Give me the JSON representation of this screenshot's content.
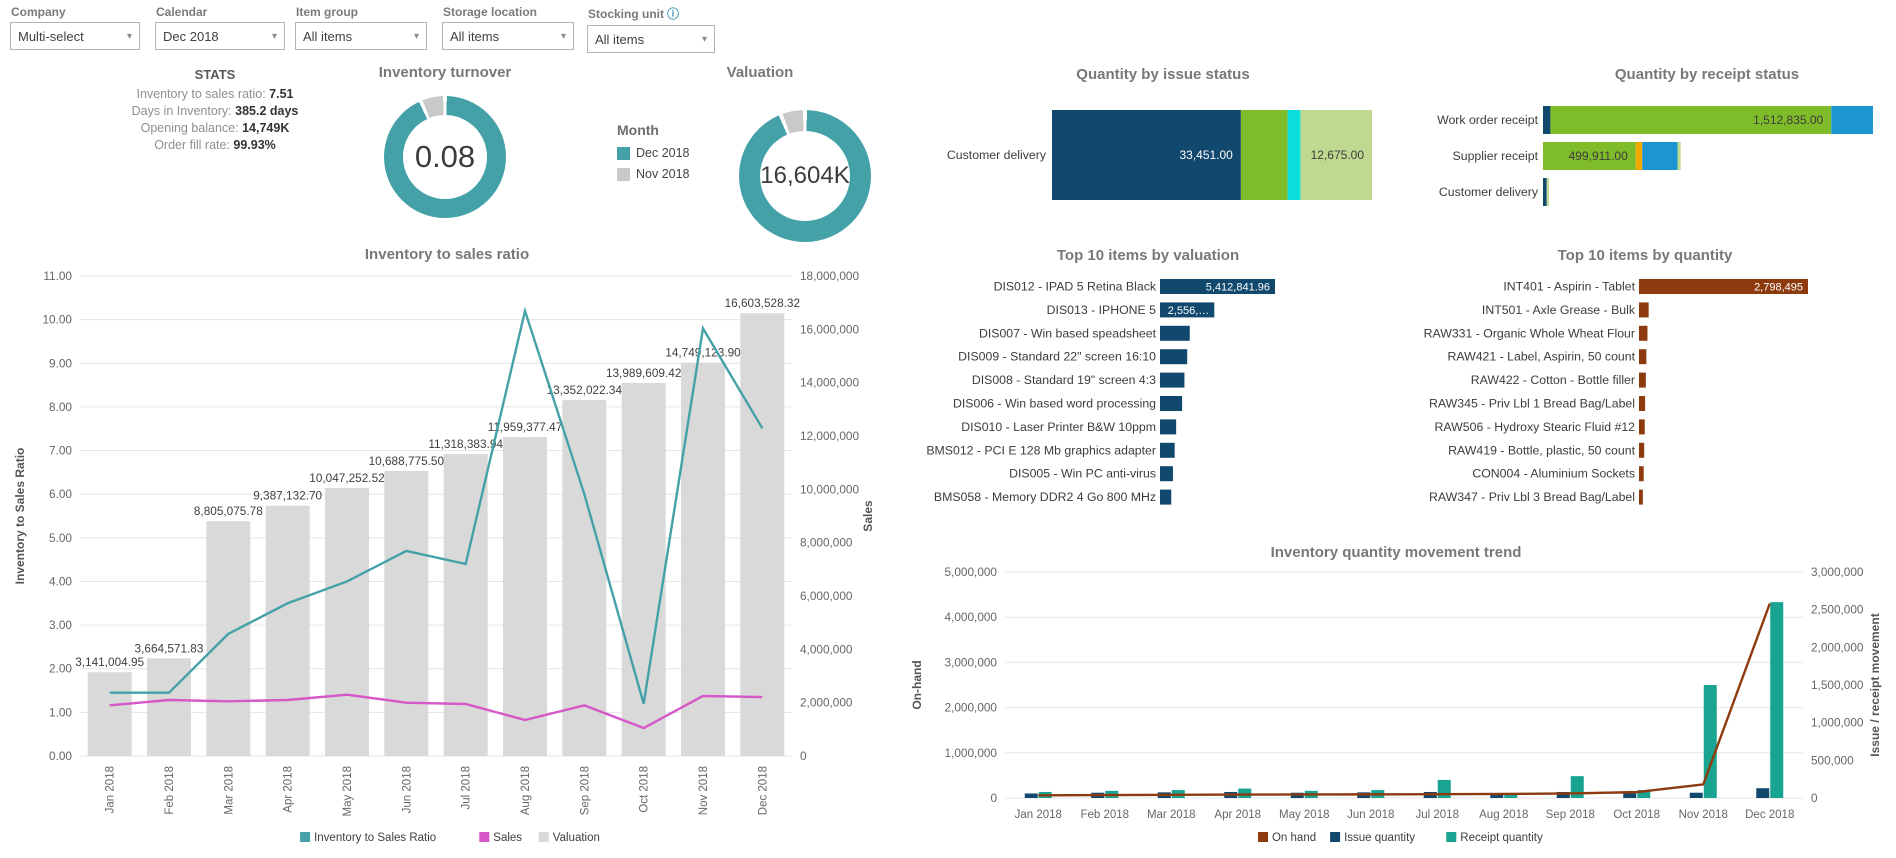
{
  "colors": {
    "teal": "#45a1a8",
    "donut_gray": "#c9c9c9",
    "bar_gray": "#d9d9d9",
    "navy": "#11486e",
    "green": "#7fbc2a",
    "light_green": "#bfda90",
    "cyan": "#0adedd",
    "blue": "#1b96d3",
    "orange": "#f2a900",
    "brown": "#8d3b0e",
    "emerald": "#18a491",
    "magenta": "#d557c8",
    "title_gray": "#787878",
    "grid": "#e5e5e5",
    "axis_text": "#666666"
  },
  "filters": [
    {
      "label": "Company",
      "value": "Multi-select",
      "info": false
    },
    {
      "label": "Calendar",
      "value": "Dec 2018",
      "info": false
    },
    {
      "label": "Item group",
      "value": "All items",
      "info": false
    },
    {
      "label": "Storage location",
      "value": "All items",
      "info": false
    },
    {
      "label": "Stocking unit",
      "value": "All items",
      "info": true
    }
  ],
  "stats": {
    "title": "STATS",
    "lines": [
      {
        "label": "Inventory to sales ratio:",
        "value": "7.51"
      },
      {
        "label": "Days in Inventory:",
        "value": "385.2 days"
      },
      {
        "label": "Opening balance:",
        "value": "14,749K"
      },
      {
        "label": "Order fill rate:",
        "value": "99.93%"
      }
    ]
  },
  "month_legend": {
    "title": "Month",
    "items": [
      {
        "label": "Dec 2018",
        "color": "#45a1a8"
      },
      {
        "label": "Nov 2018",
        "color": "#c9c9c9"
      }
    ]
  },
  "chart_data": [
    {
      "id": "inventory-turnover",
      "type": "donut",
      "title": "Inventory turnover",
      "center_label": "0.08",
      "slices": [
        {
          "label": "Dec 2018",
          "share": 93.5,
          "color": "#45a1a8"
        },
        {
          "label": "Nov 2018",
          "share": 6.5,
          "color": "#c9c9c9"
        }
      ]
    },
    {
      "id": "valuation",
      "type": "donut",
      "title": "Valuation",
      "center_label": "16,604K",
      "slices": [
        {
          "label": "Dec 2018",
          "share": 94,
          "color": "#45a1a8"
        },
        {
          "label": "Nov 2018",
          "share": 6,
          "color": "#c9c9c9"
        }
      ]
    },
    {
      "id": "issue-status",
      "type": "stacked_bar",
      "title": "Quantity by issue status",
      "rows": [
        {
          "category": "Customer delivery",
          "segments": [
            {
              "value": 33451,
              "label": "33,451.00",
              "color": "#11486e",
              "label_color": "#ffffff"
            },
            {
              "value": 8280,
              "color": "#7fbc2a"
            },
            {
              "value": 2270,
              "color": "#0adedd"
            },
            {
              "value": 12675,
              "label": "12,675.00",
              "color": "#bfda90",
              "label_color": "#3c3c3c"
            }
          ]
        }
      ]
    },
    {
      "id": "receipt-status",
      "type": "stacked_bar",
      "title": "Quantity by receipt status",
      "rows": [
        {
          "category": "Work order receipt",
          "segments": [
            {
              "value": 40000,
              "color": "#11486e"
            },
            {
              "value": 1512835,
              "label": "1,512,835.00",
              "color": "#7fbc2a",
              "label_color": "#3c3c3c"
            },
            {
              "value": 225000,
              "color": "#1b96d3"
            }
          ]
        },
        {
          "category": "Supplier receipt",
          "segments": [
            {
              "value": 499911,
              "label": "499,911.00",
              "color": "#7fbc2a",
              "label_color": "#3c3c3c"
            },
            {
              "value": 35000,
              "color": "#f2a900"
            },
            {
              "value": 190000,
              "color": "#1b96d3"
            },
            {
              "value": 17000,
              "color": "#bfda90"
            }
          ]
        },
        {
          "category": "Customer delivery",
          "segments": [
            {
              "value": 20000,
              "color": "#11486e"
            },
            {
              "value": 12000,
              "color": "#bfda90"
            }
          ]
        }
      ]
    },
    {
      "id": "top10-valuation",
      "type": "bar_list",
      "title": "Top 10 items by valuation",
      "bar_color": "#11486e",
      "items": [
        {
          "label": "DIS012 - IPAD 5 Retina Black",
          "value": 5412841.96,
          "value_label": "5,412,841.96"
        },
        {
          "label": "DIS013 - IPHONE 5",
          "value": 2556000,
          "value_label": "2,556,…"
        },
        {
          "label": "DIS007 - Win based speadsheet",
          "value": 1400000
        },
        {
          "label": "DIS009 - Standard 22\" screen 16:10",
          "value": 1280000
        },
        {
          "label": "DIS008 - Standard 19\" screen 4:3",
          "value": 1150000
        },
        {
          "label": "DIS006 - Win based word processing",
          "value": 1040000
        },
        {
          "label": "DIS010 - Laser Printer B&W 10ppm",
          "value": 760000
        },
        {
          "label": "BMS012 - PCI E 128 Mb graphics adapter",
          "value": 690000
        },
        {
          "label": "DIS005 - Win PC anti-virus",
          "value": 610000
        },
        {
          "label": "BMS058 - Memory DDR2 4 Go 800 MHz",
          "value": 530000
        }
      ]
    },
    {
      "id": "top10-quantity",
      "type": "bar_list",
      "title": "Top 10 items by quantity",
      "bar_color": "#8d3b0e",
      "items": [
        {
          "label": "INT401 - Aspirin - Tablet",
          "value": 2798495,
          "value_label": "2,798,495"
        },
        {
          "label": "INT501 - Axle Grease - Bulk",
          "value": 160000
        },
        {
          "label": "RAW331 - Organic Whole Wheat Flour",
          "value": 140000
        },
        {
          "label": "RAW421 - Label, Aspirin, 50 count",
          "value": 122000
        },
        {
          "label": "RAW422 - Cotton - Bottle filler",
          "value": 113000
        },
        {
          "label": "RAW345 - Priv Lbl 1 Bread Bag/Label",
          "value": 101000
        },
        {
          "label": "RAW506 - Hydroxy Stearic Fluid #12",
          "value": 95000
        },
        {
          "label": "RAW419 - Bottle, plastic, 50 count",
          "value": 86000
        },
        {
          "label": "CON004 - Aluminium Sockets",
          "value": 78000
        },
        {
          "label": "RAW347 - Priv Lbl 3 Bread Bag/Label",
          "value": 64000
        }
      ]
    },
    {
      "id": "inventory-to-sales-ratio",
      "type": "combo",
      "title": "Inventory to sales ratio",
      "categories": [
        "Jan 2018",
        "Feb 2018",
        "Mar 2018",
        "Apr 2018",
        "May 2018",
        "Jun 2018",
        "Jul 2018",
        "Aug 2018",
        "Sep 2018",
        "Oct 2018",
        "Nov 2018",
        "Dec 2018"
      ],
      "left_axis": {
        "title": "Inventory to Sales Ratio",
        "min": 0,
        "max": 11,
        "tick_values": [
          0,
          1,
          2,
          3,
          4,
          5,
          6,
          7,
          8,
          9,
          10,
          11
        ],
        "tick_labels": [
          "0.00",
          "1.00",
          "2.00",
          "3.00",
          "4.00",
          "5.00",
          "6.00",
          "7.00",
          "8.00",
          "9.00",
          "10.00",
          "11.00"
        ]
      },
      "right_axis": {
        "title": "Sales",
        "min": 0,
        "max": 18000000,
        "tick_values": [
          0,
          2000000,
          4000000,
          6000000,
          8000000,
          10000000,
          12000000,
          14000000,
          16000000,
          18000000
        ],
        "tick_labels": [
          "0",
          "2,000,000",
          "4,000,000",
          "6,000,000",
          "8,000,000",
          "10,000,000",
          "12,000,000",
          "14,000,000",
          "16,000,000",
          "18,000,000"
        ]
      },
      "bar_series": [
        {
          "name": "Valuation",
          "axis": "right",
          "color": "#d9d9d9",
          "values": [
            3141004.95,
            3664571.83,
            8805075.78,
            9387132.7,
            10047252.52,
            10688775.5,
            11318383.94,
            11959377.47,
            13352022.34,
            13989609.42,
            14749123.9,
            16603528.32
          ],
          "labels": [
            "3,141,004.95",
            "3,664,571.83",
            "8,805,075.78",
            "9,387,132.70",
            "10,047,252.52",
            "10,688,775.50",
            "11,318,383.94",
            "11,959,377.47",
            "13,352,022.34",
            "13,989,609.42",
            "14,749,123.90",
            "16,603,528.32"
          ]
        }
      ],
      "line_series": [
        {
          "name": "Inventory to Sales Ratio",
          "axis": "left",
          "color": "#45a1a8",
          "values": [
            1.45,
            1.45,
            2.8,
            3.5,
            4.0,
            4.7,
            4.4,
            10.2,
            6.0,
            1.2,
            9.8,
            7.51
          ]
        },
        {
          "name": "Sales",
          "axis": "right",
          "color": "#d557c8",
          "values": [
            1900000,
            2100000,
            2050000,
            2100000,
            2300000,
            2000000,
            1950000,
            1350000,
            1900000,
            1050000,
            2250000,
            2210000
          ]
        }
      ],
      "legend": [
        {
          "label": "Inventory to Sales Ratio",
          "color": "#45a1a8"
        },
        {
          "label": "Sales",
          "color": "#d557c8"
        },
        {
          "label": "Valuation",
          "color": "#d9d9d9"
        }
      ]
    },
    {
      "id": "inventory-quantity-movement-trend",
      "type": "combo",
      "title": "Inventory quantity movement trend",
      "categories": [
        "Jan 2018",
        "Feb 2018",
        "Mar 2018",
        "Apr 2018",
        "May 2018",
        "Jun 2018",
        "Jul 2018",
        "Aug 2018",
        "Sep 2018",
        "Oct 2018",
        "Nov 2018",
        "Dec 2018"
      ],
      "left_axis": {
        "title": "On-hand",
        "min": 0,
        "max": 5000000,
        "tick_values": [
          0,
          1000000,
          2000000,
          3000000,
          4000000,
          5000000
        ],
        "tick_labels": [
          "0",
          "1,000,000",
          "2,000,000",
          "3,000,000",
          "4,000,000",
          "5,000,000"
        ]
      },
      "right_axis": {
        "title": "Issue / receipt movement",
        "min": 0,
        "max": 3000000,
        "tick_values": [
          0,
          500000,
          1000000,
          1500000,
          2000000,
          2500000,
          3000000
        ],
        "tick_labels": [
          "0",
          "500,000",
          "1,000,000",
          "1,500,000",
          "2,000,000",
          "2,500,000",
          "3,000,000"
        ]
      },
      "bar_series": [
        {
          "name": "Issue quantity",
          "axis": "right",
          "color": "#11486e",
          "values": [
            60000,
            70000,
            75000,
            80000,
            70000,
            75000,
            80000,
            50000,
            80000,
            60000,
            70000,
            130000
          ]
        },
        {
          "name": "Receipt quantity",
          "axis": "right",
          "color": "#18a491",
          "values": [
            80000,
            95000,
            105000,
            125000,
            95000,
            105000,
            240000,
            60000,
            290000,
            105000,
            1500000,
            2600000
          ]
        }
      ],
      "line_series": [
        {
          "name": "On hand",
          "axis": "left",
          "color": "#8d3b0e",
          "values": [
            60000,
            65000,
            70000,
            75000,
            78000,
            80000,
            85000,
            90000,
            100000,
            130000,
            300000,
            4300000
          ]
        }
      ],
      "legend": [
        {
          "label": "On hand",
          "color": "#8d3b0e"
        },
        {
          "label": "Issue quantity",
          "color": "#11486e"
        },
        {
          "label": "Receipt quantity",
          "color": "#18a491"
        }
      ]
    }
  ]
}
